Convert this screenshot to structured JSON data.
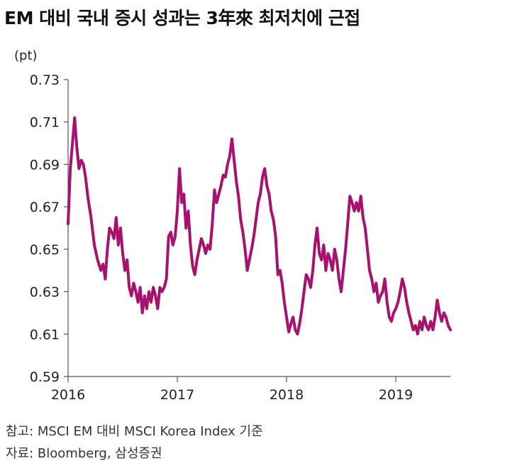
{
  "title": "EM 대비 국내 증시 성과는 3年來 최저치에 근접",
  "notes": {
    "basis": "참고: MSCI EM 대비 MSCI Korea Index 기준",
    "source": "자료: Bloomberg, 삼성증권"
  },
  "chart_data": {
    "type": "line",
    "title": "EM 대비 국내 증시 성과는 3年來 최저치에 근접",
    "ylabel": "(pt)",
    "xlabel": "",
    "ylim": [
      0.59,
      0.73
    ],
    "xlim": [
      2016.0,
      2019.5
    ],
    "yticks": [
      "0.73",
      "0.71",
      "0.69",
      "0.67",
      "0.65",
      "0.63",
      "0.61",
      "0.59"
    ],
    "xticks": [
      "2016",
      "2017",
      "2018",
      "2019"
    ],
    "grid": false,
    "legend": "none",
    "line_color": "#A8116E",
    "series": [
      {
        "name": "",
        "x": [
          2016.0,
          2016.02,
          2016.04,
          2016.06,
          2016.08,
          2016.1,
          2016.12,
          2016.14,
          2016.16,
          2016.18,
          2016.21,
          2016.24,
          2016.27,
          2016.3,
          2016.32,
          2016.34,
          2016.36,
          2016.38,
          2016.4,
          2016.42,
          2016.44,
          2016.46,
          2016.48,
          2016.5,
          2016.52,
          2016.54,
          2016.56,
          2016.58,
          2016.6,
          2016.62,
          2016.64,
          2016.66,
          2016.68,
          2016.7,
          2016.72,
          2016.74,
          2016.76,
          2016.78,
          2016.8,
          2016.82,
          2016.84,
          2016.86,
          2016.88,
          2016.9,
          2016.92,
          2016.94,
          2016.96,
          2016.98,
          2017.0,
          2017.02,
          2017.04,
          2017.06,
          2017.08,
          2017.1,
          2017.12,
          2017.14,
          2017.16,
          2017.18,
          2017.2,
          2017.22,
          2017.24,
          2017.26,
          2017.28,
          2017.3,
          2017.32,
          2017.34,
          2017.36,
          2017.38,
          2017.4,
          2017.42,
          2017.44,
          2017.46,
          2017.48,
          2017.5,
          2017.52,
          2017.54,
          2017.56,
          2017.58,
          2017.6,
          2017.62,
          2017.64,
          2017.66,
          2017.68,
          2017.7,
          2017.72,
          2017.74,
          2017.76,
          2017.78,
          2017.8,
          2017.82,
          2017.84,
          2017.86,
          2017.88,
          2017.9,
          2017.92,
          2017.94,
          2017.96,
          2017.98,
          2018.0,
          2018.02,
          2018.04,
          2018.06,
          2018.08,
          2018.1,
          2018.12,
          2018.14,
          2018.16,
          2018.18,
          2018.2,
          2018.22,
          2018.24,
          2018.26,
          2018.28,
          2018.3,
          2018.32,
          2018.34,
          2018.36,
          2018.38,
          2018.4,
          2018.42,
          2018.44,
          2018.46,
          2018.48,
          2018.5,
          2018.52,
          2018.54,
          2018.56,
          2018.58,
          2018.6,
          2018.62,
          2018.64,
          2018.66,
          2018.68,
          2018.7,
          2018.72,
          2018.74,
          2018.76,
          2018.78,
          2018.8,
          2018.82,
          2018.84,
          2018.86,
          2018.88,
          2018.9,
          2018.92,
          2018.94,
          2018.96,
          2018.98,
          2019.0,
          2019.02,
          2019.04,
          2019.06,
          2019.08,
          2019.1,
          2019.12,
          2019.14,
          2019.16,
          2019.18,
          2019.2,
          2019.22,
          2019.24,
          2019.26,
          2019.28,
          2019.3,
          2019.32,
          2019.34,
          2019.36,
          2019.38,
          2019.4,
          2019.42,
          2019.44,
          2019.46,
          2019.48,
          2019.5
        ],
        "y": [
          0.662,
          0.688,
          0.7,
          0.712,
          0.698,
          0.688,
          0.692,
          0.69,
          0.684,
          0.675,
          0.665,
          0.652,
          0.645,
          0.64,
          0.643,
          0.636,
          0.65,
          0.66,
          0.658,
          0.655,
          0.665,
          0.652,
          0.66,
          0.648,
          0.64,
          0.645,
          0.632,
          0.628,
          0.634,
          0.63,
          0.625,
          0.632,
          0.62,
          0.628,
          0.622,
          0.63,
          0.625,
          0.632,
          0.628,
          0.622,
          0.632,
          0.63,
          0.632,
          0.636,
          0.656,
          0.658,
          0.652,
          0.656,
          0.668,
          0.688,
          0.672,
          0.676,
          0.66,
          0.668,
          0.652,
          0.642,
          0.638,
          0.645,
          0.65,
          0.655,
          0.652,
          0.648,
          0.652,
          0.65,
          0.662,
          0.678,
          0.672,
          0.676,
          0.68,
          0.685,
          0.684,
          0.69,
          0.694,
          0.702,
          0.692,
          0.682,
          0.675,
          0.664,
          0.658,
          0.65,
          0.64,
          0.645,
          0.65,
          0.656,
          0.664,
          0.672,
          0.676,
          0.684,
          0.688,
          0.68,
          0.676,
          0.668,
          0.664,
          0.656,
          0.638,
          0.64,
          0.634,
          0.625,
          0.618,
          0.611,
          0.615,
          0.618,
          0.612,
          0.61,
          0.615,
          0.622,
          0.63,
          0.638,
          0.636,
          0.632,
          0.64,
          0.652,
          0.66,
          0.648,
          0.645,
          0.652,
          0.64,
          0.648,
          0.645,
          0.64,
          0.65,
          0.645,
          0.636,
          0.63,
          0.64,
          0.65,
          0.662,
          0.675,
          0.672,
          0.668,
          0.672,
          0.668,
          0.675,
          0.665,
          0.66,
          0.65,
          0.64,
          0.636,
          0.63,
          0.634,
          0.625,
          0.628,
          0.63,
          0.636,
          0.625,
          0.618,
          0.616,
          0.62,
          0.622,
          0.625,
          0.63,
          0.636,
          0.632,
          0.625,
          0.62,
          0.616,
          0.612,
          0.614,
          0.61,
          0.616,
          0.612,
          0.618,
          0.614,
          0.612,
          0.616,
          0.612,
          0.618,
          0.626,
          0.62,
          0.616,
          0.62,
          0.618,
          0.614,
          0.612
        ]
      }
    ]
  }
}
